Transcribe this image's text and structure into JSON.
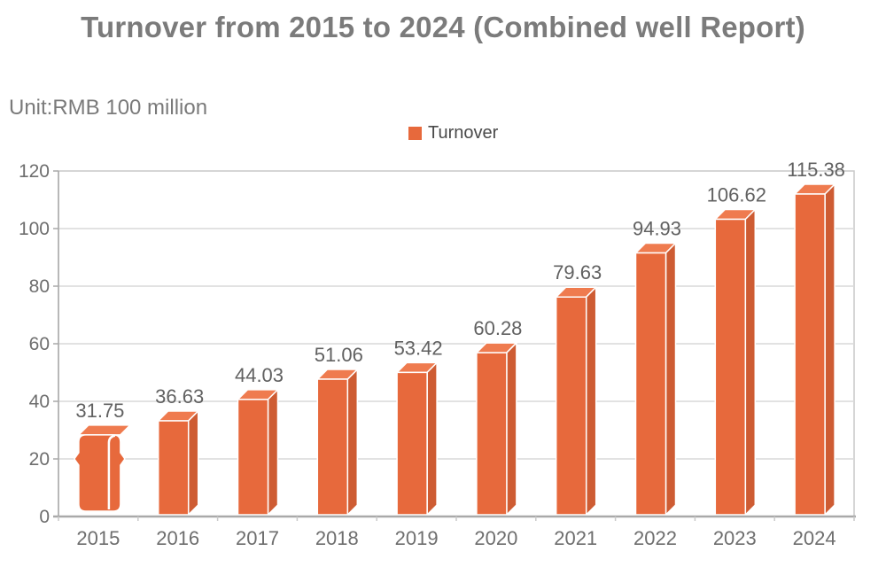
{
  "header": {
    "title": "Turnover from 2015 to 2024 (Combined well Report)",
    "unit_label": "Unit:RMB 100 million"
  },
  "legend": {
    "items": [
      {
        "label": "Turnover",
        "swatch_color": "#E7693C"
      }
    ]
  },
  "chart_data": {
    "type": "bar",
    "title": "Turnover from 2015 to 2024 (Combined well Report)",
    "unit": "RMB 100 million",
    "categories": [
      "2015",
      "2016",
      "2017",
      "2018",
      "2019",
      "2020",
      "2021",
      "2022",
      "2023",
      "2024"
    ],
    "series": [
      {
        "name": "Turnover",
        "values": [
          31.75,
          36.63,
          44.03,
          51.06,
          53.42,
          60.28,
          79.63,
          94.93,
          106.62,
          115.38
        ]
      }
    ],
    "ylim": [
      0,
      120
    ],
    "ytick_step": 20,
    "yticks": [
      0,
      20,
      40,
      60,
      80,
      100,
      120
    ],
    "grid": true,
    "legend_position": "top-center",
    "bar_style": "3d",
    "first_bar_style": "rounded-pinched"
  },
  "colors": {
    "bar_front": "#E7693C",
    "bar_top": "#EF7B4F",
    "bar_side": "#CE5C33",
    "grid": "#D9D9D9",
    "border": "#C9C9C9",
    "axis": "#A9A9A9",
    "value_label": "#616161",
    "tick_label": "#6E6E6E",
    "title": "#7B7B7B",
    "legend_text": "#4A4A4A"
  }
}
